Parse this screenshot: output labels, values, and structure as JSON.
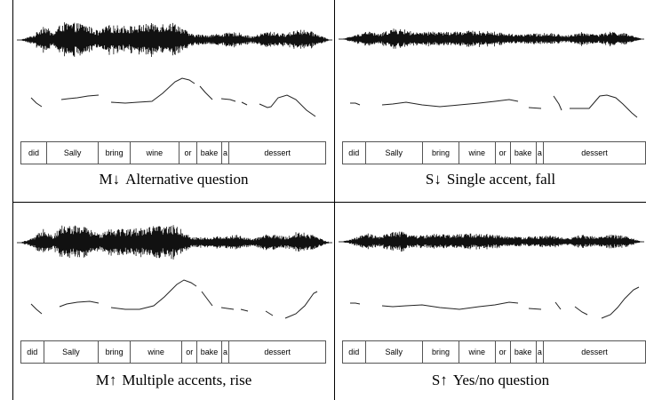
{
  "panels": [
    {
      "code": "M↓",
      "caption": "Alternative question",
      "contour": "alt",
      "words": [
        {
          "w": "did",
          "f": 0.085
        },
        {
          "w": "Sally",
          "f": 0.17
        },
        {
          "w": "bring",
          "f": 0.105
        },
        {
          "w": "wine",
          "f": 0.16
        },
        {
          "w": "or",
          "f": 0.06
        },
        {
          "w": "bake",
          "f": 0.08
        },
        {
          "w": "a",
          "f": 0.025
        },
        {
          "w": "dessert",
          "f": 0.315
        }
      ]
    },
    {
      "code": "S↓",
      "caption": "Single accent, fall",
      "contour": "fall",
      "words": [
        {
          "w": "did",
          "f": 0.075
        },
        {
          "w": "Sally",
          "f": 0.19
        },
        {
          "w": "bring",
          "f": 0.12
        },
        {
          "w": "wine",
          "f": 0.12
        },
        {
          "w": "or",
          "f": 0.05
        },
        {
          "w": "bake",
          "f": 0.085
        },
        {
          "w": "a",
          "f": 0.025
        },
        {
          "w": "dessert",
          "f": 0.335
        }
      ]
    },
    {
      "code": "M↑",
      "caption": "Multiple accents, rise",
      "contour": "multi",
      "words": [
        {
          "w": "did",
          "f": 0.075
        },
        {
          "w": "Sally",
          "f": 0.18
        },
        {
          "w": "bring",
          "f": 0.105
        },
        {
          "w": "wine",
          "f": 0.17
        },
        {
          "w": "or",
          "f": 0.05
        },
        {
          "w": "bake",
          "f": 0.08
        },
        {
          "w": "a",
          "f": 0.025
        },
        {
          "w": "dessert",
          "f": 0.315
        }
      ]
    },
    {
      "code": "S↑",
      "caption": "Yes/no question",
      "contour": "yesno",
      "words": [
        {
          "w": "did",
          "f": 0.075
        },
        {
          "w": "Sally",
          "f": 0.19
        },
        {
          "w": "bring",
          "f": 0.12
        },
        {
          "w": "wine",
          "f": 0.12
        },
        {
          "w": "or",
          "f": 0.05
        },
        {
          "w": "bake",
          "f": 0.085
        },
        {
          "w": "a",
          "f": 0.025
        },
        {
          "w": "dessert",
          "f": 0.335
        }
      ]
    }
  ]
}
